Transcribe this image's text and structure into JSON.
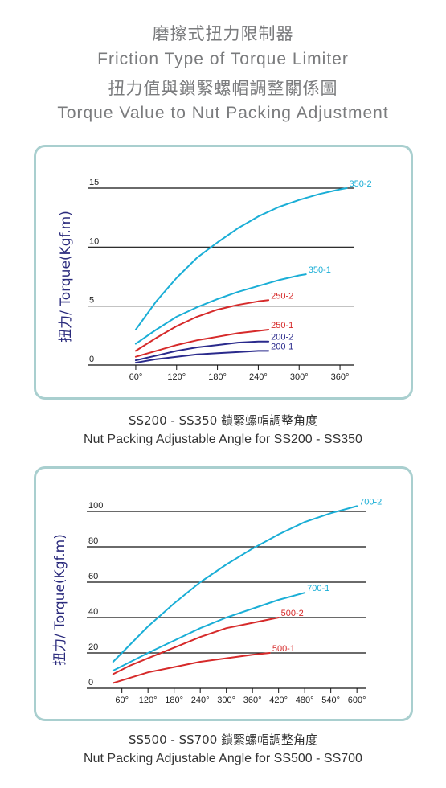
{
  "header": {
    "title_zh": "磨擦式扭力限制器",
    "title_en": "Friction Type of Torque Limiter",
    "subtitle_zh": "扭力值與鎖緊螺帽調整關係圖",
    "subtitle_en": "Torque Value to Nut Packing Adjustment"
  },
  "chart_data": [
    {
      "type": "line",
      "ylabel": "扭力/ Torque(Kgf.m)",
      "xlabel": "",
      "x_ticks": [
        "60°",
        "120°",
        "180°",
        "240°",
        "300°",
        "360°"
      ],
      "x_tick_values": [
        60,
        120,
        180,
        240,
        300,
        360
      ],
      "y_ticks": [
        "15",
        "10",
        "5",
        "0"
      ],
      "y_tick_values": [
        15,
        10,
        5,
        0
      ],
      "xlim": [
        40,
        380
      ],
      "ylim": [
        0,
        15
      ],
      "grid": "horizontal",
      "caption_zh": "SS200 - SS350 鎖緊螺帽調整角度",
      "caption_en": "Nut Packing Adjustable Angle for SS200 - SS350",
      "series": [
        {
          "name": "350-2",
          "color": "#1aaed6",
          "x": [
            60,
            90,
            120,
            150,
            180,
            210,
            240,
            270,
            300,
            330,
            360,
            370
          ],
          "y": [
            3.0,
            5.4,
            7.4,
            9.1,
            10.4,
            11.6,
            12.6,
            13.4,
            14.0,
            14.5,
            14.9,
            15.0
          ]
        },
        {
          "name": "350-1",
          "color": "#1aaed6",
          "x": [
            60,
            90,
            120,
            150,
            180,
            210,
            240,
            270,
            300,
            310
          ],
          "y": [
            1.8,
            3.0,
            4.1,
            4.9,
            5.6,
            6.2,
            6.7,
            7.2,
            7.6,
            7.7
          ]
        },
        {
          "name": "250-2",
          "color": "#d62a2a",
          "x": [
            60,
            90,
            120,
            150,
            180,
            210,
            240,
            255
          ],
          "y": [
            1.2,
            2.3,
            3.3,
            4.1,
            4.7,
            5.1,
            5.4,
            5.5
          ]
        },
        {
          "name": "250-1",
          "color": "#d62a2a",
          "x": [
            60,
            90,
            120,
            150,
            180,
            210,
            240,
            255
          ],
          "y": [
            0.7,
            1.2,
            1.7,
            2.1,
            2.4,
            2.7,
            2.9,
            3.0
          ]
        },
        {
          "name": "200-2",
          "color": "#2a2a8c",
          "x": [
            60,
            90,
            120,
            150,
            180,
            210,
            240,
            255
          ],
          "y": [
            0.4,
            0.8,
            1.2,
            1.5,
            1.7,
            1.9,
            2.0,
            2.0
          ]
        },
        {
          "name": "200-1",
          "color": "#2a2a8c",
          "x": [
            60,
            90,
            120,
            150,
            180,
            210,
            240,
            255
          ],
          "y": [
            0.2,
            0.5,
            0.7,
            0.9,
            1.0,
            1.1,
            1.2,
            1.2
          ]
        }
      ]
    },
    {
      "type": "line",
      "ylabel": "扭力/ Torque(Kgf.m)",
      "xlabel": "",
      "x_ticks": [
        "60°",
        "120°",
        "180°",
        "240°",
        "300°",
        "360°",
        "420°",
        "480°",
        "540°",
        "600°"
      ],
      "x_tick_values": [
        60,
        120,
        180,
        240,
        300,
        360,
        420,
        480,
        540,
        600
      ],
      "y_ticks": [
        "100",
        "80",
        "60",
        "40",
        "20",
        "0"
      ],
      "y_tick_values": [
        100,
        80,
        60,
        40,
        20,
        0
      ],
      "xlim": [
        20,
        620
      ],
      "ylim": [
        0,
        100
      ],
      "grid": "horizontal",
      "caption_zh": "SS500 - SS700 鎖緊螺帽調整角度",
      "caption_en": "Nut Packing Adjustable Angle for SS500 - SS700",
      "series": [
        {
          "name": "700-2",
          "color": "#1aaed6",
          "x": [
            40,
            80,
            120,
            180,
            240,
            300,
            360,
            420,
            480,
            540,
            600
          ],
          "y": [
            15,
            25,
            35,
            48,
            60,
            70,
            79,
            87,
            94,
            99,
            103
          ]
        },
        {
          "name": "700-1",
          "color": "#1aaed6",
          "x": [
            40,
            80,
            120,
            180,
            240,
            300,
            360,
            420,
            480
          ],
          "y": [
            10,
            15,
            20,
            27,
            34,
            40,
            45,
            50,
            54
          ]
        },
        {
          "name": "500-2",
          "color": "#d62a2a",
          "x": [
            40,
            80,
            120,
            180,
            240,
            300,
            360,
            420
          ],
          "y": [
            8,
            13,
            17,
            23,
            29,
            34,
            37,
            40
          ]
        },
        {
          "name": "500-1",
          "color": "#d62a2a",
          "x": [
            40,
            80,
            120,
            180,
            240,
            300,
            360,
            400
          ],
          "y": [
            3,
            6,
            9,
            12,
            15,
            17,
            19,
            20
          ]
        }
      ]
    }
  ]
}
